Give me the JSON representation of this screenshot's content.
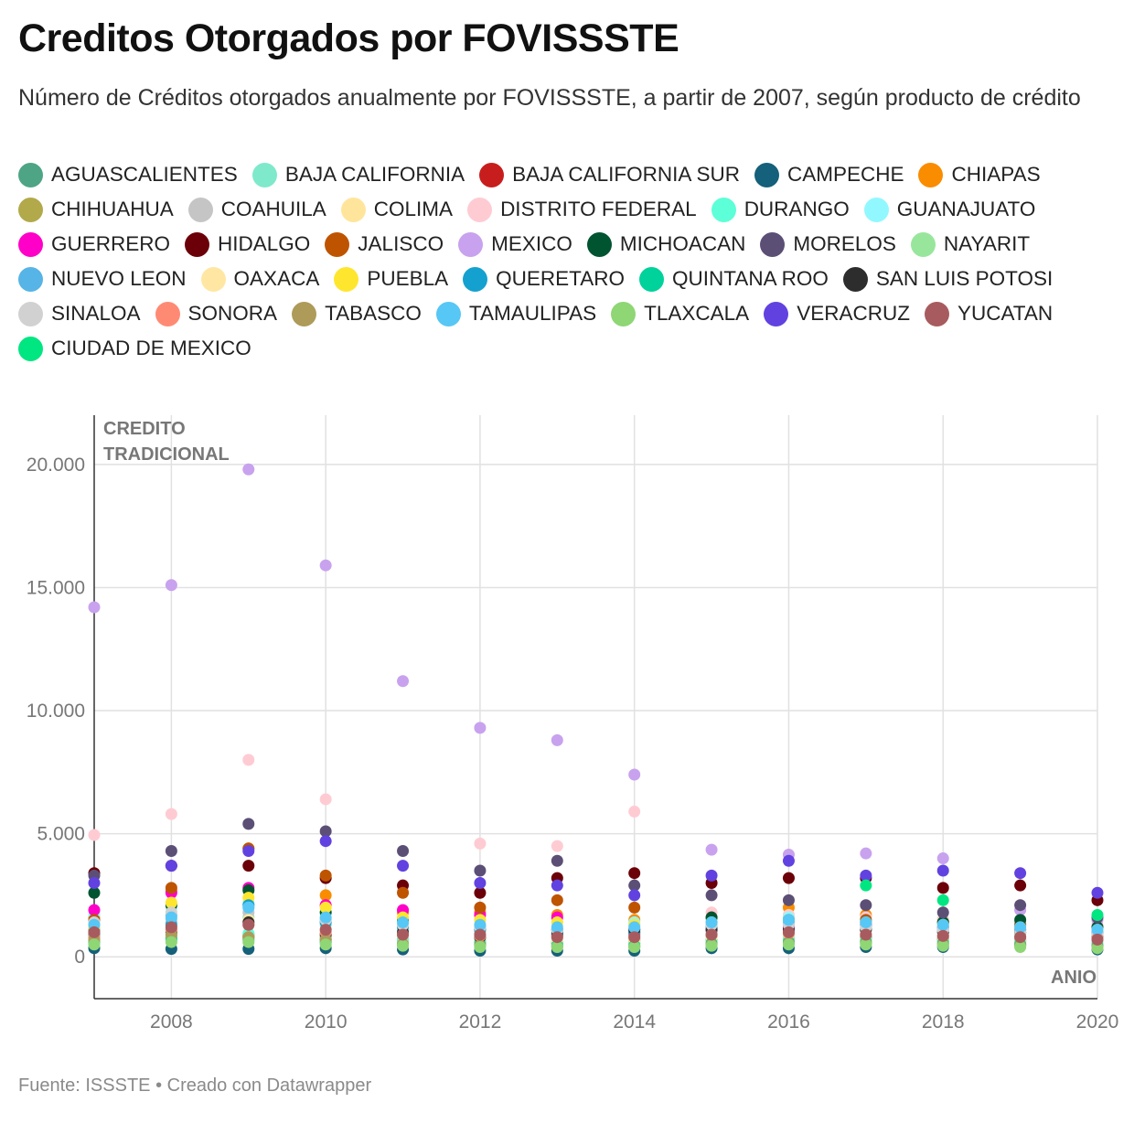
{
  "title": "Creditos Otorgados por FOVISSSTE",
  "subtitle": "Número de Créditos otorgados anualmente por FOVISSSTE, a partir de 2007, según producto de crédito",
  "footer": {
    "source_label": "Fuente: ISSSTE",
    "separator": " • ",
    "created_with": "Creado con Datawrapper"
  },
  "chart_data": {
    "type": "scatter",
    "title": "Creditos Otorgados por FOVISSSTE",
    "panel_label_line1": "CREDITO",
    "panel_label_line2": "TRADICIONAL",
    "xlabel": "ANIO",
    "ylabel": "",
    "xlim": [
      2007,
      2020
    ],
    "ylim": [
      -1700,
      22000
    ],
    "x_ticks": [
      2008,
      2010,
      2012,
      2014,
      2016,
      2018,
      2020
    ],
    "x_tick_labels": [
      "2008",
      "2010",
      "2012",
      "2014",
      "2016",
      "2018",
      "2020"
    ],
    "y_ticks": [
      0,
      5000,
      10000,
      15000,
      20000
    ],
    "y_tick_labels": [
      "0",
      "5.000",
      "10.000",
      "15.000",
      "20.000"
    ],
    "grid": true,
    "legend_position": "top",
    "x": [
      2007,
      2008,
      2009,
      2010,
      2011,
      2012,
      2013,
      2014,
      2015,
      2016,
      2017,
      2018,
      2019,
      2020
    ],
    "series": [
      {
        "name": "AGUASCALIENTES",
        "color": "#4ea585",
        "values": [
          800,
          900,
          850,
          700,
          600,
          600,
          550,
          550,
          700,
          750,
          800,
          700,
          650,
          550
        ]
      },
      {
        "name": "BAJA CALIFORNIA",
        "color": "#7fe9cb",
        "values": [
          1300,
          1400,
          1600,
          1300,
          1000,
          1000,
          900,
          900,
          1000,
          1100,
          1100,
          1000,
          900,
          800
        ]
      },
      {
        "name": "BAJA CALIFORNIA SUR",
        "color": "#c71e1d",
        "values": [
          700,
          800,
          800,
          700,
          600,
          600,
          550,
          700,
          800,
          900,
          800,
          750,
          700,
          650
        ]
      },
      {
        "name": "CAMPECHE",
        "color": "#15607a",
        "values": [
          350,
          320,
          320,
          350,
          300,
          250,
          250,
          250,
          350,
          350,
          400,
          400,
          500,
          300
        ]
      },
      {
        "name": "CHIAPAS",
        "color": "#fa8c00",
        "values": [
          1600,
          2700,
          4400,
          2500,
          1800,
          1800,
          1700,
          1500,
          1400,
          2000,
          1700,
          1500,
          1300,
          1200
        ]
      },
      {
        "name": "CHIHUAHUA",
        "color": "#b2a94a",
        "values": [
          1000,
          1100,
          900,
          800,
          700,
          650,
          600,
          650,
          700,
          750,
          700,
          650,
          600,
          550
        ]
      },
      {
        "name": "COAHUILA",
        "color": "#c5c5c5",
        "values": [
          1200,
          1500,
          1800,
          1400,
          1200,
          1100,
          1100,
          1300,
          1300,
          1200,
          1100,
          1000,
          950,
          900
        ]
      },
      {
        "name": "COLIMA",
        "color": "#ffe59c",
        "values": [
          600,
          700,
          700,
          600,
          500,
          450,
          450,
          450,
          500,
          550,
          550,
          500,
          450,
          400
        ]
      },
      {
        "name": "DISTRITO FEDERAL",
        "color": "#ffcbd3",
        "values": [
          4950,
          5800,
          8000,
          6400,
          2700,
          4600,
          4500,
          5900,
          1800,
          1700,
          1600,
          1500,
          1400,
          1300
        ]
      },
      {
        "name": "DURANGO",
        "color": "#5cffd8",
        "values": [
          900,
          1000,
          950,
          800,
          700,
          700,
          650,
          700,
          750,
          800,
          750,
          700,
          650,
          600
        ]
      },
      {
        "name": "GUANAJUATO",
        "color": "#92f8ff",
        "values": [
          1700,
          2000,
          2200,
          1800,
          1500,
          1500,
          1400,
          1400,
          1500,
          1600,
          1500,
          1400,
          1300,
          1200
        ]
      },
      {
        "name": "GUERRERO",
        "color": "#ff00c8",
        "values": [
          1900,
          2600,
          2800,
          2100,
          1900,
          1700,
          1600,
          900,
          1100,
          1200,
          1300,
          1200,
          1100,
          1000
        ]
      },
      {
        "name": "HIDALGO",
        "color": "#6b0008",
        "values": [
          3400,
          3700,
          3700,
          3200,
          2900,
          2600,
          3200,
          3400,
          3000,
          3200,
          3200,
          2800,
          2900,
          2300
        ]
      },
      {
        "name": "JALISCO",
        "color": "#be5400",
        "values": [
          1500,
          2800,
          4400,
          3300,
          2600,
          2000,
          2300,
          2000,
          1600,
          1500,
          1500,
          1400,
          1300,
          1200
        ]
      },
      {
        "name": "MEXICO",
        "color": "#c8a2ee",
        "values": [
          14200,
          15100,
          19800,
          15900,
          11200,
          9300,
          8800,
          7400,
          4350,
          4150,
          4200,
          4000,
          1900,
          1500
        ]
      },
      {
        "name": "MICHOACAN",
        "color": "#005430",
        "values": [
          2600,
          2100,
          2700,
          1800,
          1500,
          1200,
          1100,
          1000,
          1600,
          1500,
          1400,
          1400,
          1500,
          1200
        ]
      },
      {
        "name": "MORELOS",
        "color": "#5c4f76",
        "values": [
          3300,
          4300,
          5400,
          5100,
          4300,
          3500,
          3900,
          2900,
          2500,
          2300,
          2100,
          1800,
          2100,
          1600
        ]
      },
      {
        "name": "NAYARIT",
        "color": "#98e69c",
        "values": [
          700,
          800,
          800,
          700,
          600,
          600,
          550,
          550,
          600,
          650,
          650,
          600,
          550,
          500
        ]
      },
      {
        "name": "NUEVO LEON",
        "color": "#57b4e6",
        "values": [
          1100,
          1700,
          2100,
          1500,
          1300,
          1200,
          1100,
          1100,
          1300,
          1400,
          1300,
          1200,
          1100,
          1000
        ]
      },
      {
        "name": "OAXACA",
        "color": "#ffe7a3",
        "values": [
          900,
          1200,
          1500,
          1100,
          900,
          800,
          700,
          700,
          800,
          900,
          900,
          800,
          750,
          700
        ]
      },
      {
        "name": "PUEBLA",
        "color": "#ffe62e",
        "values": [
          1200,
          2200,
          2400,
          2000,
          1600,
          1500,
          1400,
          1300,
          1400,
          1500,
          1400,
          1300,
          1200,
          1100
        ]
      },
      {
        "name": "QUERETARO",
        "color": "#15a1cf",
        "values": [
          900,
          1300,
          2100,
          1400,
          1200,
          1100,
          1000,
          1000,
          1200,
          1300,
          1200,
          1100,
          1000,
          900
        ]
      },
      {
        "name": "QUINTANA ROO",
        "color": "#00d29b",
        "values": [
          600,
          700,
          700,
          600,
          500,
          500,
          450,
          450,
          550,
          600,
          600,
          550,
          500,
          450
        ]
      },
      {
        "name": "SAN LUIS POTOSI",
        "color": "#2d2d2d",
        "values": [
          1000,
          1000,
          1400,
          900,
          1000,
          800,
          900,
          1100,
          1100,
          1100,
          1100,
          1000,
          1000,
          800
        ]
      },
      {
        "name": "SINALOA",
        "color": "#d1d1d1",
        "values": [
          1400,
          1800,
          2000,
          1500,
          1300,
          1200,
          1100,
          1200,
          1300,
          1300,
          1200,
          1100,
          1000,
          900
        ]
      },
      {
        "name": "SONORA",
        "color": "#ff8a74",
        "values": [
          800,
          1100,
          1300,
          1000,
          900,
          850,
          800,
          800,
          900,
          950,
          900,
          850,
          800,
          750
        ]
      },
      {
        "name": "TABASCO",
        "color": "#ae9b5a",
        "values": [
          700,
          900,
          800,
          700,
          500,
          450,
          400,
          400,
          500,
          550,
          550,
          500,
          450,
          400
        ]
      },
      {
        "name": "TAMAULIPAS",
        "color": "#57c7f5",
        "values": [
          1300,
          1600,
          2000,
          1600,
          1400,
          1300,
          1200,
          1200,
          1400,
          1500,
          1400,
          1300,
          1200,
          1100
        ]
      },
      {
        "name": "TLAXCALA",
        "color": "#8fd675",
        "values": [
          500,
          600,
          600,
          500,
          450,
          400,
          400,
          400,
          450,
          500,
          500,
          450,
          400,
          350
        ]
      },
      {
        "name": "VERACRUZ",
        "color": "#6142e0",
        "values": [
          3000,
          3700,
          4300,
          4700,
          3700,
          3000,
          2900,
          2500,
          3300,
          3900,
          3300,
          3500,
          3400,
          2600
        ]
      },
      {
        "name": "YUCATAN",
        "color": "#a85b5e",
        "values": [
          1000,
          1200,
          1300,
          1100,
          900,
          900,
          800,
          800,
          900,
          1000,
          900,
          850,
          800,
          700
        ]
      },
      {
        "name": "CIUDAD DE MEXICO",
        "color": "#00e681",
        "values": [
          null,
          null,
          null,
          null,
          null,
          null,
          null,
          null,
          null,
          null,
          2900,
          2300,
          null,
          1700
        ]
      }
    ]
  }
}
